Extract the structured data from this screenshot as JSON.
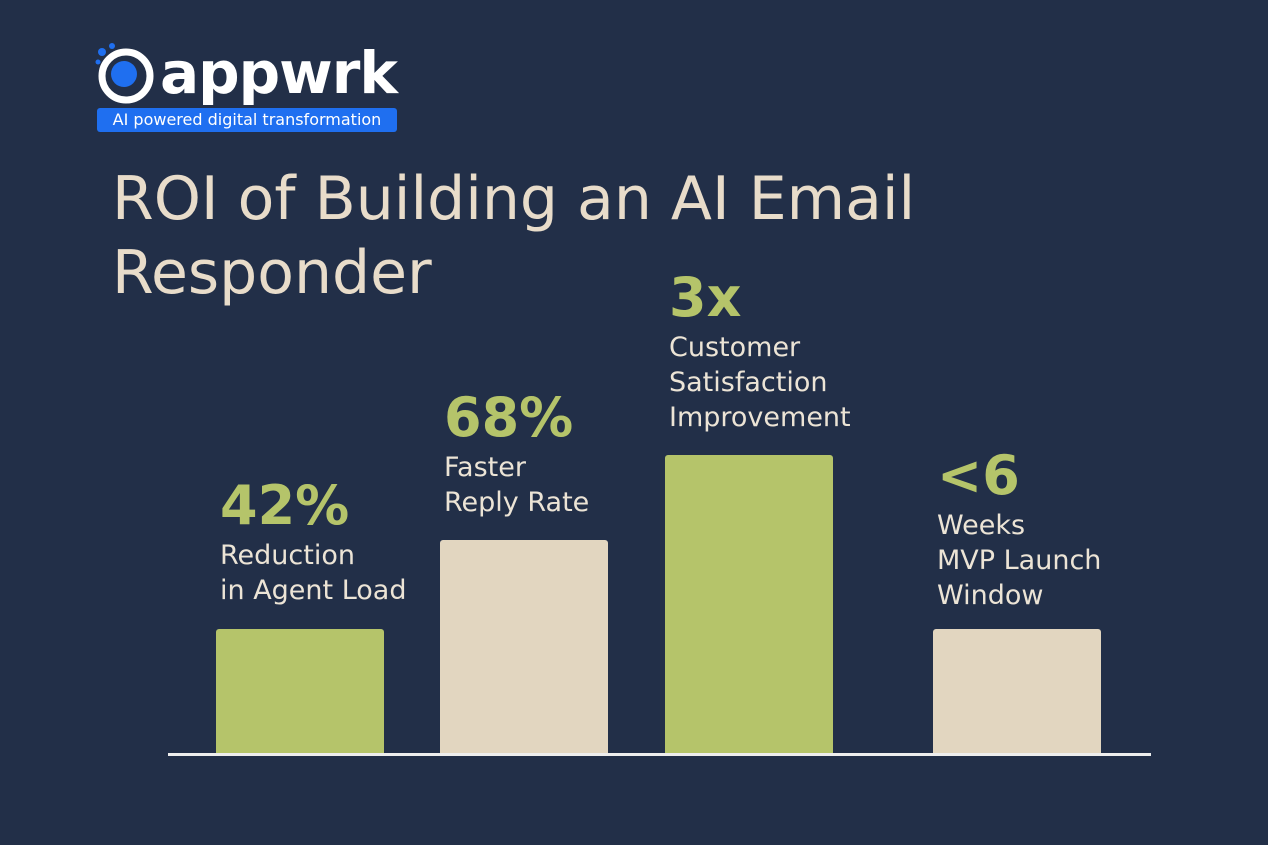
{
  "logo": {
    "name": "appwrk",
    "tagline": "AI powered digital transformation"
  },
  "title": [
    "ROI of Building an AI Email",
    "Responder"
  ],
  "items": [
    {
      "value": "42%",
      "label": [
        "Reduction",
        "in Agent Load"
      ]
    },
    {
      "value": "68%",
      "label": [
        "Faster",
        "Reply Rate"
      ]
    },
    {
      "value": "3x",
      "label": [
        "Customer",
        "Satisfaction",
        "Improvement"
      ]
    },
    {
      "value": "<6",
      "label": [
        "Weeks",
        "MVP Launch",
        "Window"
      ]
    }
  ]
}
